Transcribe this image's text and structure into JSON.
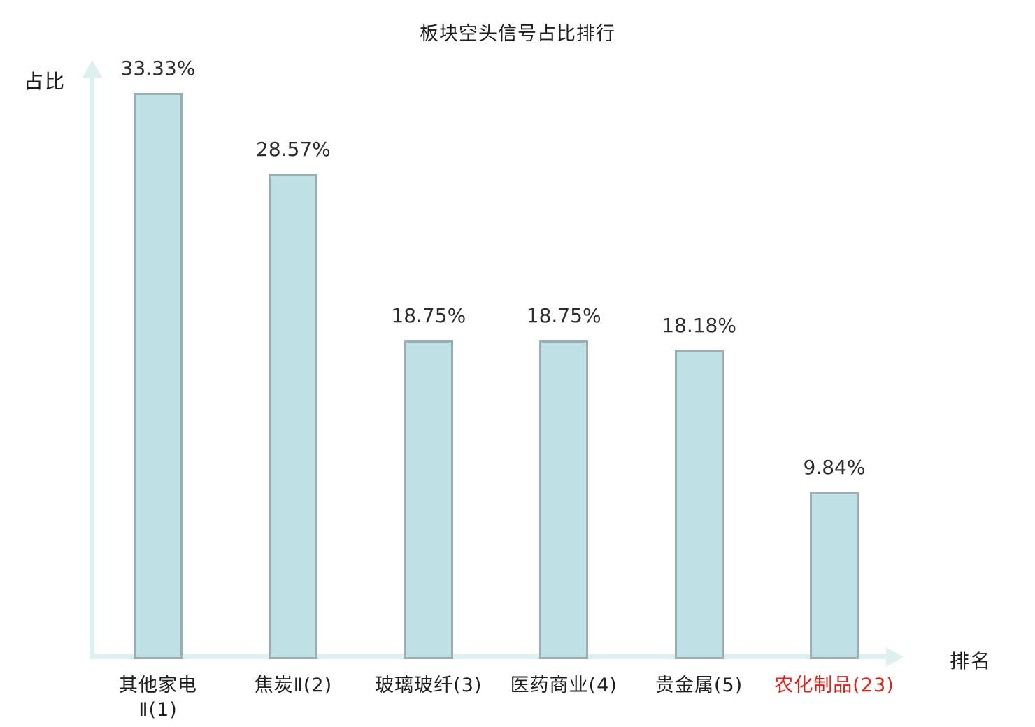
{
  "title": "板块空头信号占比排行",
  "axis": {
    "y_label": "占比",
    "x_label": "排名"
  },
  "colors": {
    "bar_fill": "#bfe0e4",
    "bar_border": "#9bafb2",
    "axis": "#ddefee",
    "text": "#2d2d2d",
    "highlight": "#e0201a"
  },
  "chart_data": {
    "type": "bar",
    "title": "板块空头信号占比排行",
    "xlabel": "排名",
    "ylabel": "占比",
    "categories": [
      "其他家电\nⅡ(1)",
      "焦炭Ⅱ(2)",
      "玻璃玻纤(3)",
      "医药商业(4)",
      "贵金属(5)",
      "农化制品(23)"
    ],
    "values": [
      33.33,
      28.57,
      18.75,
      18.75,
      18.18,
      9.84
    ],
    "value_labels": [
      "33.33%",
      "28.57%",
      "18.75%",
      "18.75%",
      "18.18%",
      "9.84%"
    ],
    "highlight_index": 5,
    "ylim": [
      0,
      38.8
    ],
    "grid": false,
    "legend": "none"
  }
}
